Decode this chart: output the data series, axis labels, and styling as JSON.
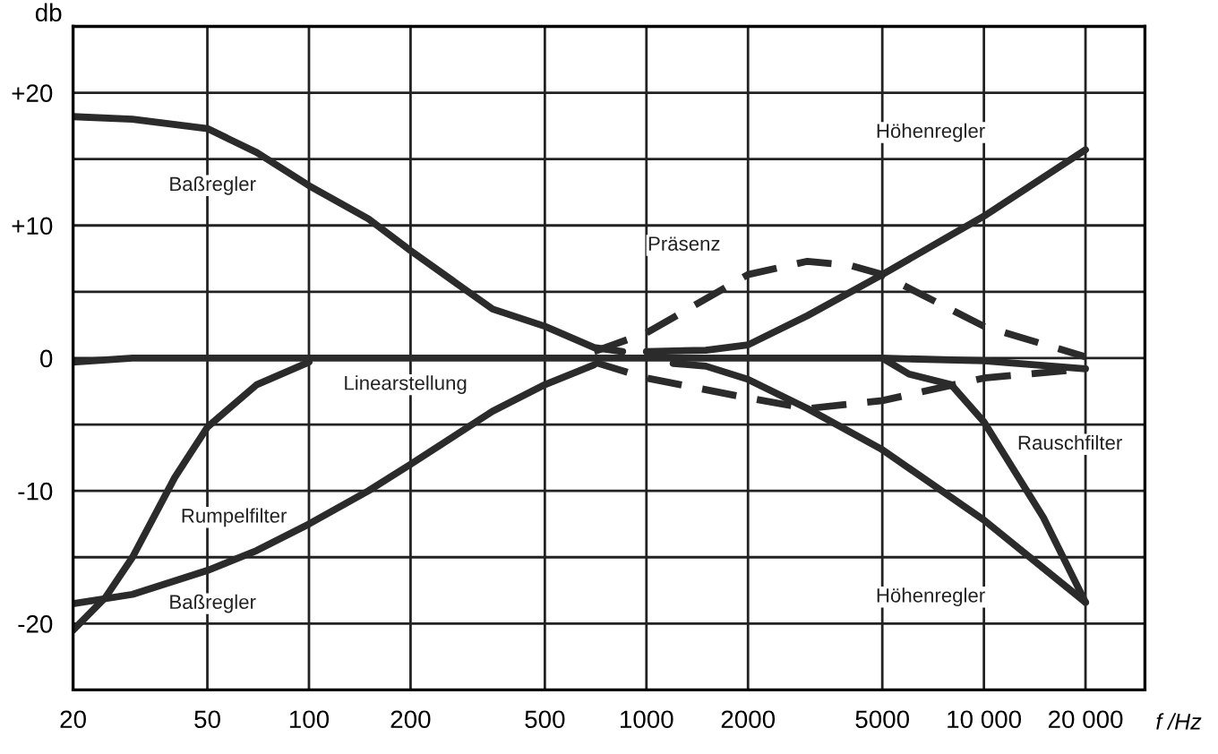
{
  "chart_data": {
    "type": "line",
    "xlabel": "f /Hz",
    "ylabel": "db",
    "log": "x",
    "grid": true,
    "line_style": "solid",
    "marker": "none",
    "xlim": [
      20,
      30000
    ],
    "xticks": [
      20,
      50,
      100,
      200,
      500,
      1000,
      2000,
      5000,
      {
        "value": 10000,
        "label": "10 000"
      },
      {
        "value": 20000,
        "label": "20 000"
      }
    ],
    "ylim": [
      -25,
      25
    ],
    "yticks": [
      {
        "value": -25,
        "label": null
      },
      {
        "value": -20,
        "label": "-20"
      },
      {
        "value": -15,
        "label": null
      },
      {
        "value": -10,
        "label": "-10"
      },
      {
        "value": -5,
        "label": null
      },
      0,
      {
        "value": 5,
        "label": null
      },
      {
        "value": 10,
        "label": "+10"
      },
      {
        "value": 15,
        "label": null
      },
      {
        "value": 20,
        "label": "+20"
      },
      {
        "value": 25,
        "label": null
      }
    ],
    "series": [
      {
        "color": "#2b2b2b",
        "x": [
          20,
          30,
          50,
          70,
          100,
          150,
          200,
          350,
          500,
          700,
          850
        ],
        "values": [
          18.2,
          18,
          17.3,
          15.5,
          13,
          10.5,
          8.1,
          3.7,
          2.4,
          0.8,
          0.5
        ]
      },
      {
        "color": "#2b2b2b",
        "x": [
          20,
          30,
          50,
          70,
          100,
          150,
          200,
          350,
          500,
          700
        ],
        "values": [
          -18.5,
          -17.8,
          -16,
          -14.5,
          -12.5,
          -10,
          -8,
          -4,
          -2,
          -0.5
        ]
      },
      {
        "color": "#2b2b2b",
        "x": [
          20,
          25,
          30,
          40,
          50,
          70,
          100
        ],
        "values": [
          -20.5,
          -18,
          -15,
          -9,
          -5.2,
          -2,
          -0.3
        ]
      },
      {
        "color": "#2b2b2b",
        "x": [
          20,
          30,
          100,
          1000,
          5000,
          10000,
          20000
        ],
        "values": [
          -0.3,
          0,
          0,
          0,
          0,
          -0.2,
          -0.8
        ]
      },
      {
        "color": "#2b2b2b",
        "x": [
          1000,
          1500,
          2000,
          3000,
          5000,
          10000,
          20000
        ],
        "values": [
          0.5,
          0.6,
          1,
          3.2,
          6.3,
          10.7,
          15.7
        ]
      },
      {
        "color": "#2b2b2b",
        "x": [
          1200,
          1500,
          2000,
          3000,
          5000,
          10000,
          20000
        ],
        "values": [
          -0.4,
          -0.6,
          -1.6,
          -3.8,
          -6.9,
          -12.2,
          -18.4
        ]
      },
      {
        "color": "#2b2b2b",
        "line_style": "dashed",
        "x": [
          700,
          1000,
          2000,
          3000,
          4000,
          5000,
          10000,
          20000
        ],
        "values": [
          0.5,
          1.9,
          6.3,
          7.3,
          7,
          6.3,
          2.4,
          0.1
        ]
      },
      {
        "color": "#2b2b2b",
        "line_style": "dashed",
        "x": [
          700,
          1000,
          2000,
          3000,
          5000,
          10000,
          20000
        ],
        "values": [
          -0.3,
          -1.5,
          -3,
          -3.8,
          -3.2,
          -1.5,
          -0.8
        ]
      },
      {
        "color": "#2b2b2b",
        "x": [
          5000,
          6000,
          8000,
          10000,
          15000,
          20000
        ],
        "values": [
          0,
          -1.2,
          -2,
          -4.8,
          -12,
          -18.4
        ]
      }
    ],
    "annotations": [
      "Baßregler",
      "Höhenregler",
      "Präsenz",
      "Linearstellung",
      "Rumpelfilter",
      "Baßregler",
      "Rauschfilter",
      "Höhenregler"
    ]
  }
}
